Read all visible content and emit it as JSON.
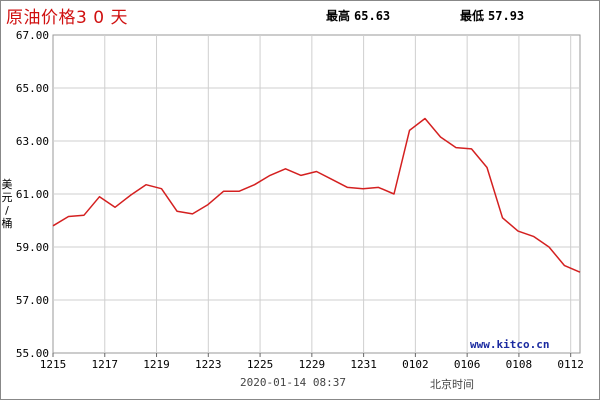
{
  "header": {
    "title": "原油价格3 0 天",
    "high_label": "最高",
    "high_value": "65.63",
    "low_label": "最低",
    "low_value": "57.93"
  },
  "footer": {
    "timestamp": "2020-01-14 08:37",
    "timezone": "北京时间",
    "watermark": "www.kitco.cn"
  },
  "chart_data": {
    "type": "line",
    "title": "原油价格3 0 天",
    "xlabel": "",
    "ylabel": "美元/桶",
    "ylim": [
      55.0,
      67.0
    ],
    "yticks": [
      "67.00",
      "65.00",
      "63.00",
      "61.00",
      "59.00",
      "57.00",
      "55.00"
    ],
    "xticks": [
      "1215",
      "1217",
      "1219",
      "1223",
      "1225",
      "1229",
      "1231",
      "0102",
      "0106",
      "0108",
      "0112"
    ],
    "grid": true,
    "line_color": "#d42020",
    "series": [
      {
        "values": [
          59.8,
          60.15,
          60.2,
          60.9,
          60.5,
          60.95,
          61.35,
          61.2,
          60.35,
          60.25,
          60.6,
          61.1,
          61.1,
          61.35,
          61.7,
          61.95,
          61.7,
          61.85,
          61.55,
          61.25,
          61.2,
          61.25,
          61.0,
          63.4,
          63.85,
          63.15,
          62.75,
          62.7,
          62.0,
          60.1,
          59.6,
          59.4,
          59.0,
          58.3,
          58.05
        ]
      }
    ]
  }
}
